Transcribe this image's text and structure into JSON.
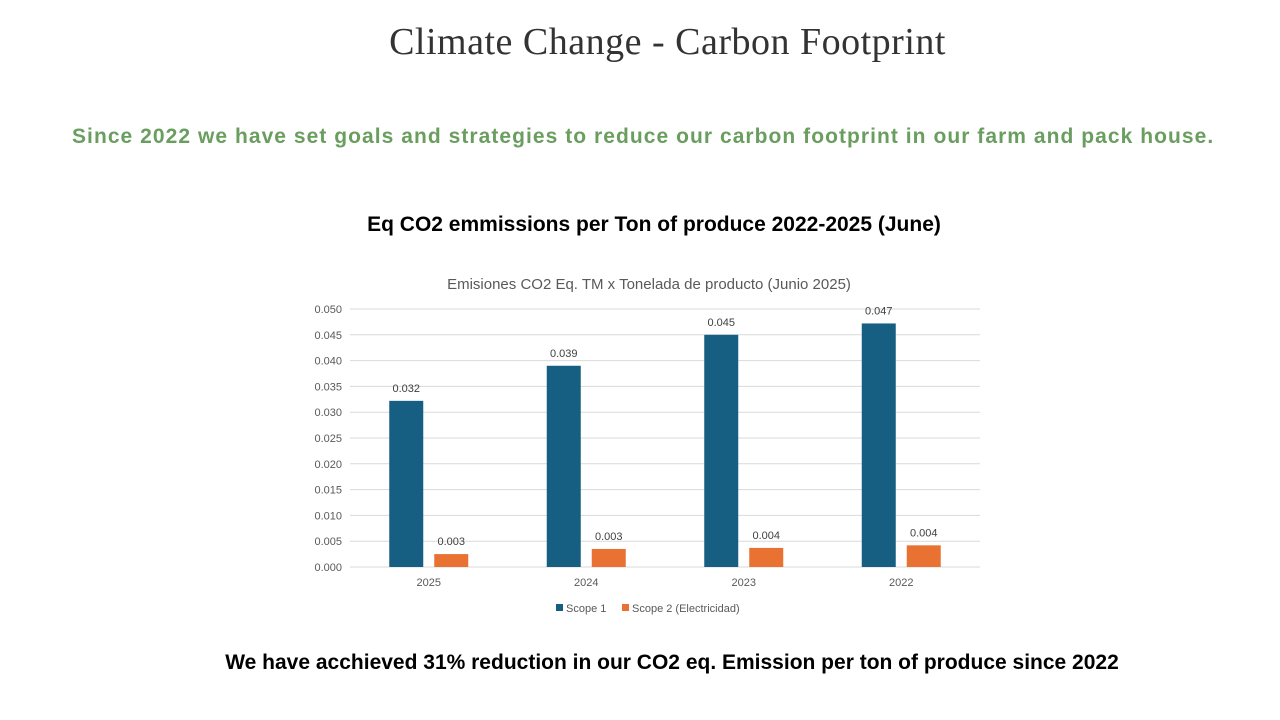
{
  "page": {
    "title": "Climate Change - Carbon Footprint",
    "subtitle": "Since 2022 we have set goals and strategies to reduce our carbon footprint in our farm and pack house.",
    "chart_heading": "Eq CO2 emmissions per Ton of produce 2022-2025 (June)",
    "footer": "We have acchieved 31% reduction in our CO2 eq. Emission per ton of produce since 2022"
  },
  "chart_data": {
    "type": "bar",
    "title": "Emisiones CO2 Eq. TM x Tonelada de producto (Junio 2025)",
    "categories": [
      "2025",
      "2024",
      "2023",
      "2022"
    ],
    "series": [
      {
        "name": "Scope 1",
        "color": "#175f82",
        "values": [
          0.0322,
          0.039,
          0.045,
          0.0472
        ],
        "labels": [
          "0.032",
          "0.039",
          "0.045",
          "0.047"
        ]
      },
      {
        "name": "Scope 2 (Electricidad)",
        "color": "#e97132",
        "values": [
          0.0025,
          0.0035,
          0.0037,
          0.0042
        ],
        "labels": [
          "0.003",
          "0.003",
          "0.004",
          "0.004"
        ]
      }
    ],
    "ylim": [
      0,
      0.05
    ],
    "yticks": [
      "0.000",
      "0.005",
      "0.010",
      "0.015",
      "0.020",
      "0.025",
      "0.030",
      "0.035",
      "0.040",
      "0.045",
      "0.050"
    ],
    "xlabel": "",
    "ylabel": "",
    "grid": true,
    "legend": "bottom"
  }
}
